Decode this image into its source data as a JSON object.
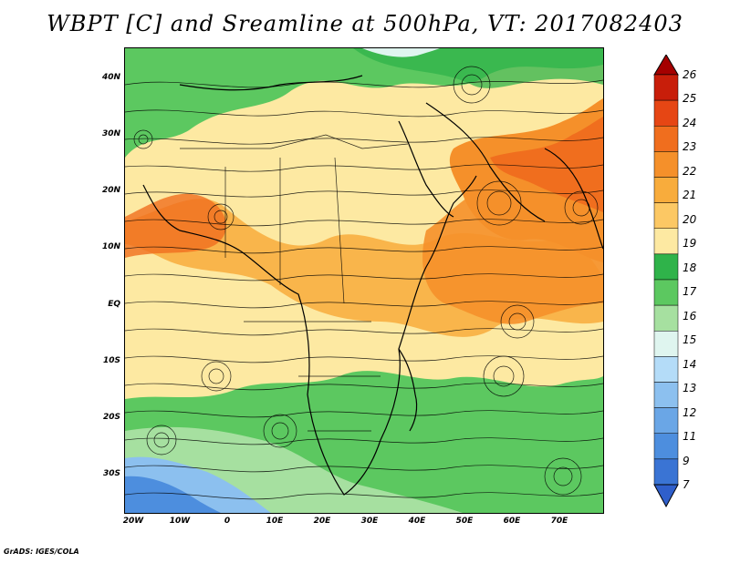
{
  "title": "WBPT [C] and Sreamline at 500hPa, VT: 2017082403",
  "footer": "GrADS: IGES/COLA",
  "latitude_labels": [
    "40N",
    "30N",
    "20N",
    "10N",
    "EQ",
    "10S",
    "20S",
    "30S"
  ],
  "longitude_labels": [
    "20W",
    "10W",
    "0",
    "10E",
    "20E",
    "30E",
    "40E",
    "50E",
    "60E",
    "70E"
  ],
  "colorbar": {
    "labels": [
      "26",
      "25",
      "24",
      "23",
      "22",
      "21",
      "20",
      "19",
      "18",
      "17",
      "16",
      "15",
      "14",
      "13",
      "12",
      "11",
      "9",
      "7"
    ],
    "colors": [
      "#a50000",
      "#c81e0a",
      "#e64614",
      "#f06e1e",
      "#f5902a",
      "#f8ac3c",
      "#fcc864",
      "#fde9a2",
      "#2fb34a",
      "#5cc860",
      "#a6e0a0",
      "#dff5ef",
      "#b4dcf8",
      "#8cc0ef",
      "#6aa6e6",
      "#4d8ede",
      "#3a74d4",
      "#2f5fcb"
    ]
  },
  "map_fields": {
    "regions": [
      {
        "name": "north-green-band",
        "value_range": "16-18"
      },
      {
        "name": "central-yellow-band",
        "value_range": "19-20"
      },
      {
        "name": "arabian-orange-core",
        "value_range": "21-24"
      },
      {
        "name": "southern-green-band",
        "value_range": "16-18"
      },
      {
        "name": "southwest-blue-core",
        "value_range": "11-15"
      }
    ]
  }
}
